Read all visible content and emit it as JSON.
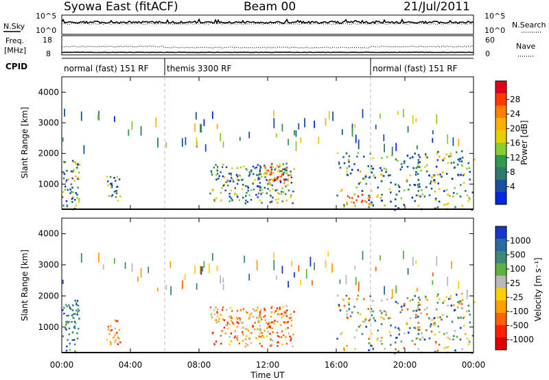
{
  "header": {
    "title": "Syowa East (fitACF)",
    "beam": "Beam 00",
    "date": "21/Jul/2011"
  },
  "top_panels": {
    "nsky_label": "N.Sky",
    "nsearch_label": "N.Search",
    "noise_ticks": [
      "10^5",
      "10^0"
    ],
    "freq_label_line1": "Freq.",
    "freq_label_line2": "[MHz]",
    "freq_ticks": [
      "18",
      "8"
    ],
    "nave_label": "Nave",
    "nave_ticks": [
      "60",
      "0"
    ],
    "cpid_label": "CPID",
    "modes": [
      {
        "label": "normal (fast) 151 RF",
        "start_h": 0,
        "end_h": 6
      },
      {
        "label": "themis 3300 RF",
        "start_h": 6,
        "end_h": 18
      },
      {
        "label": "normal (fast) 151 RF",
        "start_h": 18,
        "end_h": 24
      }
    ]
  },
  "x_axis": {
    "label": "Time UT",
    "ticks": [
      "00:00",
      "04:00",
      "08:00",
      "12:00",
      "16:00",
      "20:00",
      "00:00"
    ]
  },
  "power_colorbar": {
    "label": "Power [dB]",
    "ticks": [
      "28",
      "24",
      "20",
      "16",
      "12",
      "8",
      "4"
    ],
    "colors": [
      "#e0001a",
      "#ff3a00",
      "#ff8000",
      "#ffb000",
      "#e8d000",
      "#88cc30",
      "#2e9a4a",
      "#2e7a70",
      "#1a4fa0",
      "#0028e0"
    ]
  },
  "velocity_colorbar": {
    "label": "Velocity [m s⁻¹]",
    "ticks": [
      "1000",
      "500",
      "100",
      "25",
      "-25",
      "-100",
      "-500",
      "-1000"
    ],
    "colors": [
      "#1438c8",
      "#2a6aa0",
      "#3a8a78",
      "#60b040",
      "#b8b8b8",
      "#ffd000",
      "#ffa000",
      "#ff6000",
      "#ff2000",
      "#e00000"
    ]
  },
  "chart_data": [
    {
      "type": "heatmap",
      "title": "Power",
      "xlabel": "",
      "ylabel": "Slant Range [km]",
      "xlim": [
        0,
        24
      ],
      "ylim": [
        180,
        4500
      ],
      "yticks": [
        "1000",
        "2000",
        "3000",
        "4000"
      ],
      "yticks_values": [
        1000,
        2000,
        3000,
        4000
      ],
      "clim": [
        0,
        30
      ],
      "regions": [
        {
          "t": [
            0.0,
            1.0
          ],
          "r": [
            180,
            1900
          ],
          "level": "mid"
        },
        {
          "t": [
            2.6,
            3.4
          ],
          "r": [
            400,
            1300
          ],
          "level": "mid"
        },
        {
          "t": [
            8.6,
            13.5
          ],
          "r": [
            400,
            1700
          ],
          "level": "mid"
        },
        {
          "t": [
            11.8,
            13.2
          ],
          "r": [
            1000,
            1600
          ],
          "level": "high"
        },
        {
          "t": [
            16.0,
            24.0
          ],
          "r": [
            180,
            2100
          ],
          "level": "mid"
        },
        {
          "t": [
            16.5,
            18.0
          ],
          "r": [
            350,
            700
          ],
          "level": "high"
        }
      ]
    },
    {
      "type": "heatmap",
      "title": "Velocity",
      "xlabel": "Time UT",
      "ylabel": "Slant Range [km]",
      "xlim": [
        0,
        24
      ],
      "ylim": [
        180,
        4500
      ],
      "yticks": [
        "1000",
        "2000",
        "3000",
        "4000"
      ],
      "yticks_values": [
        1000,
        2000,
        3000,
        4000
      ],
      "clim": [
        -1000,
        1000
      ],
      "regions": [
        {
          "t": [
            0.0,
            1.0
          ],
          "r": [
            180,
            1900
          ],
          "sign": "toward"
        },
        {
          "t": [
            2.6,
            3.4
          ],
          "r": [
            400,
            1300
          ],
          "sign": "away"
        },
        {
          "t": [
            8.6,
            13.5
          ],
          "r": [
            400,
            1700
          ],
          "sign": "away"
        },
        {
          "t": [
            16.0,
            24.0
          ],
          "r": [
            180,
            2100
          ],
          "sign": "mixed"
        }
      ]
    }
  ]
}
